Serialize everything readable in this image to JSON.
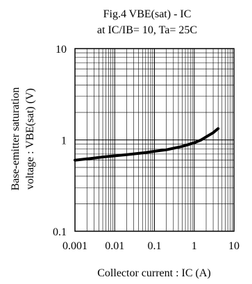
{
  "chart_data": {
    "type": "line",
    "title": "Fig.4  VBE(sat) - IC",
    "subtitle": "at IC/IB= 10, Ta= 25C",
    "xlabel": "Collector current : IC (A)",
    "ylabel_line1": "Base-emitter saturation",
    "ylabel_line2": "voltage : VBE(sat) (V)",
    "x_scale": "log",
    "y_scale": "log",
    "xlim": [
      0.001,
      10
    ],
    "ylim": [
      0.1,
      10
    ],
    "x_ticks": [
      {
        "value": 0.001,
        "label": "0.001"
      },
      {
        "value": 0.01,
        "label": "0.01"
      },
      {
        "value": 0.1,
        "label": "0.1"
      },
      {
        "value": 1,
        "label": "1"
      },
      {
        "value": 10,
        "label": "10"
      }
    ],
    "y_ticks": [
      {
        "value": 0.1,
        "label": "0.1"
      },
      {
        "value": 1,
        "label": "1"
      },
      {
        "value": 10,
        "label": "10"
      }
    ],
    "grid": true,
    "line_color": "#000000",
    "series": [
      {
        "x": [
          0.001,
          0.002,
          0.005,
          0.01,
          0.02,
          0.05,
          0.1,
          0.2,
          0.5,
          1,
          1.5,
          2,
          3,
          4
        ],
        "y": [
          0.6,
          0.62,
          0.65,
          0.67,
          0.69,
          0.72,
          0.75,
          0.78,
          0.85,
          0.93,
          1.0,
          1.08,
          1.2,
          1.33
        ]
      }
    ]
  }
}
